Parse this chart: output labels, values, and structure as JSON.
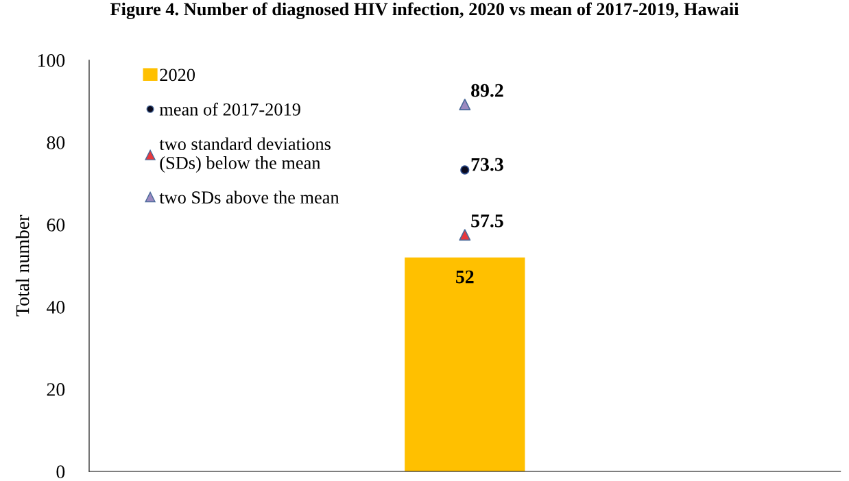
{
  "chart_data": {
    "type": "bar",
    "title": "Figure 4. Number of diagnosed HIV infection, 2020 vs mean of 2017-2019, Hawaii",
    "ylabel": "Total number",
    "categories": [
      null
    ],
    "series": [
      {
        "name": "2020",
        "color": "#ffc000",
        "values": [
          52
        ]
      },
      {
        "name": "mean of 2017-2019",
        "type": "scatter",
        "marker": "circle",
        "color": "#0a0a1e",
        "values": [
          73.3
        ]
      },
      {
        "name": "two standard deviations\n(SDs) below the mean",
        "type": "scatter",
        "marker": "triangle",
        "color": "#e8383d",
        "values": [
          57.5
        ]
      },
      {
        "name": "two SDs above the mean",
        "type": "scatter",
        "marker": "triangle",
        "color": "#9c8ac0",
        "values": [
          89.2
        ]
      }
    ],
    "ylim": [
      0,
      100
    ],
    "yticks": [
      0,
      20,
      40,
      60,
      80,
      100
    ],
    "data_labels": true,
    "grid": false,
    "legend": "top left"
  }
}
